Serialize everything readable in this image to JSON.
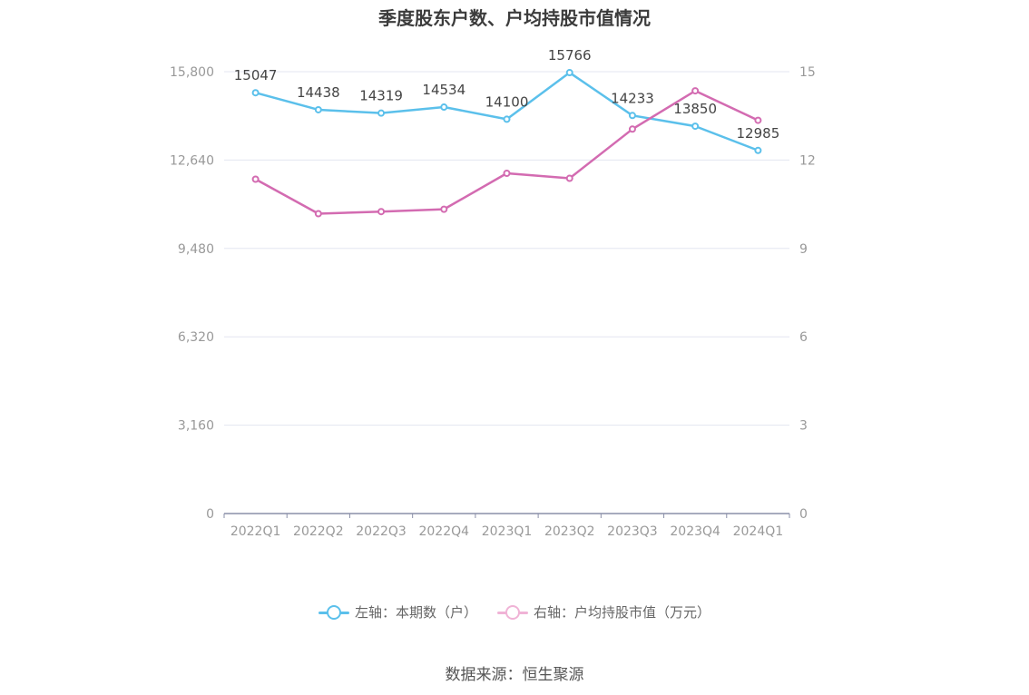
{
  "title": "季度股东户数、户均持股市值情况",
  "source": "数据来源：恒生聚源",
  "chart_data": {
    "type": "line",
    "categories": [
      "2022Q1",
      "2022Q2",
      "2022Q3",
      "2022Q4",
      "2023Q1",
      "2023Q2",
      "2023Q3",
      "2023Q4",
      "2024Q1"
    ],
    "series": [
      {
        "name": "左轴：本期数（户）",
        "axis": "left",
        "color": "#5bc0eb",
        "values": [
          15047,
          14438,
          14319,
          14534,
          14100,
          15766,
          14233,
          13850,
          12985
        ],
        "labels": [
          "15047",
          "14438",
          "14319",
          "14534",
          "14100",
          "15766",
          "14233",
          "13850",
          "12985"
        ]
      },
      {
        "name": "右轴：户均持股市值（万元）",
        "axis": "right",
        "color": "#d36bb1",
        "values": [
          11.35,
          10.18,
          10.25,
          10.33,
          11.55,
          11.38,
          13.05,
          14.35,
          13.35
        ]
      }
    ],
    "left_axis": {
      "ticks": [
        "0",
        "3,160",
        "6,320",
        "9,480",
        "12,640",
        "15,800"
      ],
      "ylim": [
        0,
        15800
      ]
    },
    "right_axis": {
      "ticks": [
        "0",
        "3",
        "6",
        "9",
        "12",
        "15"
      ],
      "ylim": [
        0,
        15
      ]
    },
    "grid": true,
    "legend_position": "bottom"
  }
}
